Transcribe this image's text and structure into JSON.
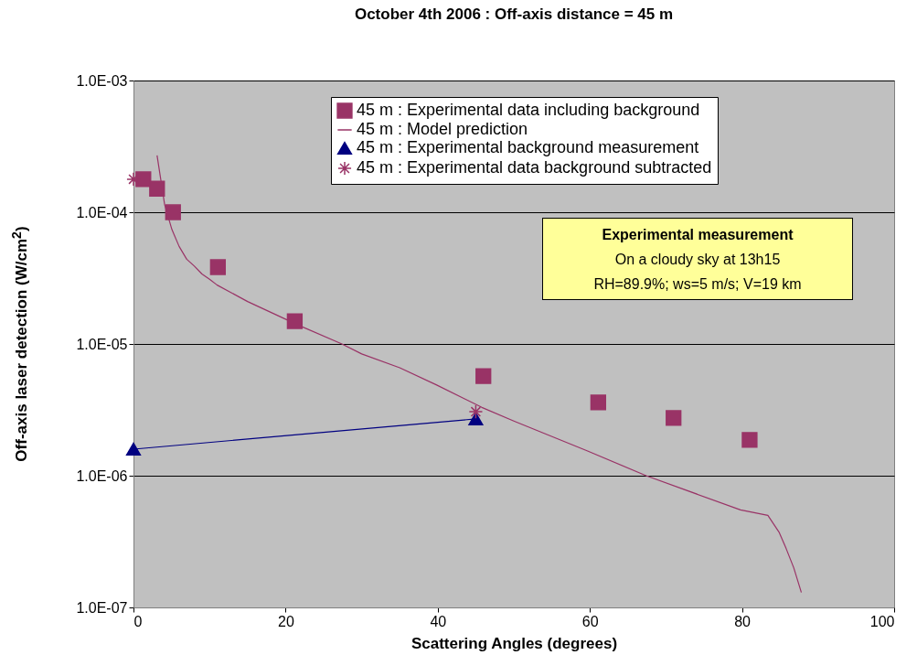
{
  "chart_data": {
    "type": "scatter",
    "title": "October 4th 2006 : Off-axis distance = 45 m",
    "xlabel": "Scattering Angles (degrees)",
    "ylabel": "Off-axis laser detection (W/cm$^{2}$)",
    "xlim": [
      0,
      100
    ],
    "xticks": [
      0,
      20,
      40,
      60,
      80,
      100
    ],
    "ylim": [
      1e-07,
      0.001
    ],
    "yticks": [
      {
        "value": 1e-07,
        "label": "1.0E-07"
      },
      {
        "value": 1e-06,
        "label": "1.0E-06"
      },
      {
        "value": 1e-05,
        "label": "1.0E-05"
      },
      {
        "value": 0.0001,
        "label": "1.0E-04"
      },
      {
        "value": 0.001,
        "label": "1.0E-03"
      }
    ],
    "log": "y",
    "grid": "y",
    "legend": "top right",
    "series": [
      {
        "name": "45 m : Experimental data including background",
        "type": "scatter",
        "marker": "square",
        "color": "#993366",
        "x": [
          1.3,
          3.1,
          5.2,
          11.1,
          21.2,
          46.0,
          61.1,
          71.0,
          81.0
        ],
        "values": [
          0.000178,
          0.000151,
          0.0001,
          3.83e-05,
          1.49e-05,
          5.7e-06,
          3.6e-06,
          2.74e-06,
          1.87e-06
        ]
      },
      {
        "name": "45 m : Model prediction",
        "type": "line",
        "color": "#993366",
        "x": [
          3.1,
          4.1,
          5.05,
          6.0,
          7.0,
          8.0,
          9.0,
          10.0,
          11.0,
          15.0,
          21.8,
          27.4,
          30.0,
          35.0,
          39.8,
          45.8,
          50.0,
          59.7,
          67.4,
          79.8,
          83.4,
          84.9,
          85.8,
          86.8,
          87.8
        ],
        "values": [
          0.00027,
          0.000114,
          7.4e-05,
          5.5e-05,
          4.4e-05,
          3.9e-05,
          3.4e-05,
          3.1e-05,
          2.8e-05,
          2.1e-05,
          1.38e-05,
          1e-05,
          8.4e-06,
          6.6e-06,
          4.9e-06,
          3.3e-06,
          2.6e-06,
          1.54e-06,
          1e-06,
          5.5e-07,
          5e-07,
          3.7e-07,
          2.8e-07,
          2e-07,
          1.3e-07
        ]
      },
      {
        "name": "45 m : Experimental background measurement",
        "type": "line",
        "marker": "triangle",
        "color": "#000080",
        "x": [
          0,
          45
        ],
        "values": [
          1.59e-06,
          2.7e-06
        ]
      },
      {
        "name": "45 m : Experimental data background subtracted",
        "type": "scatter",
        "marker": "cross",
        "color": "#993366",
        "x": [
          0,
          45
        ],
        "values": [
          0.000178,
          3.06e-06
        ]
      }
    ],
    "annotations": [
      "Experimental measurement",
      "On a cloudy sky at 13h15",
      "RH=89.9%; ws=5 m/s; V=19 km"
    ]
  }
}
